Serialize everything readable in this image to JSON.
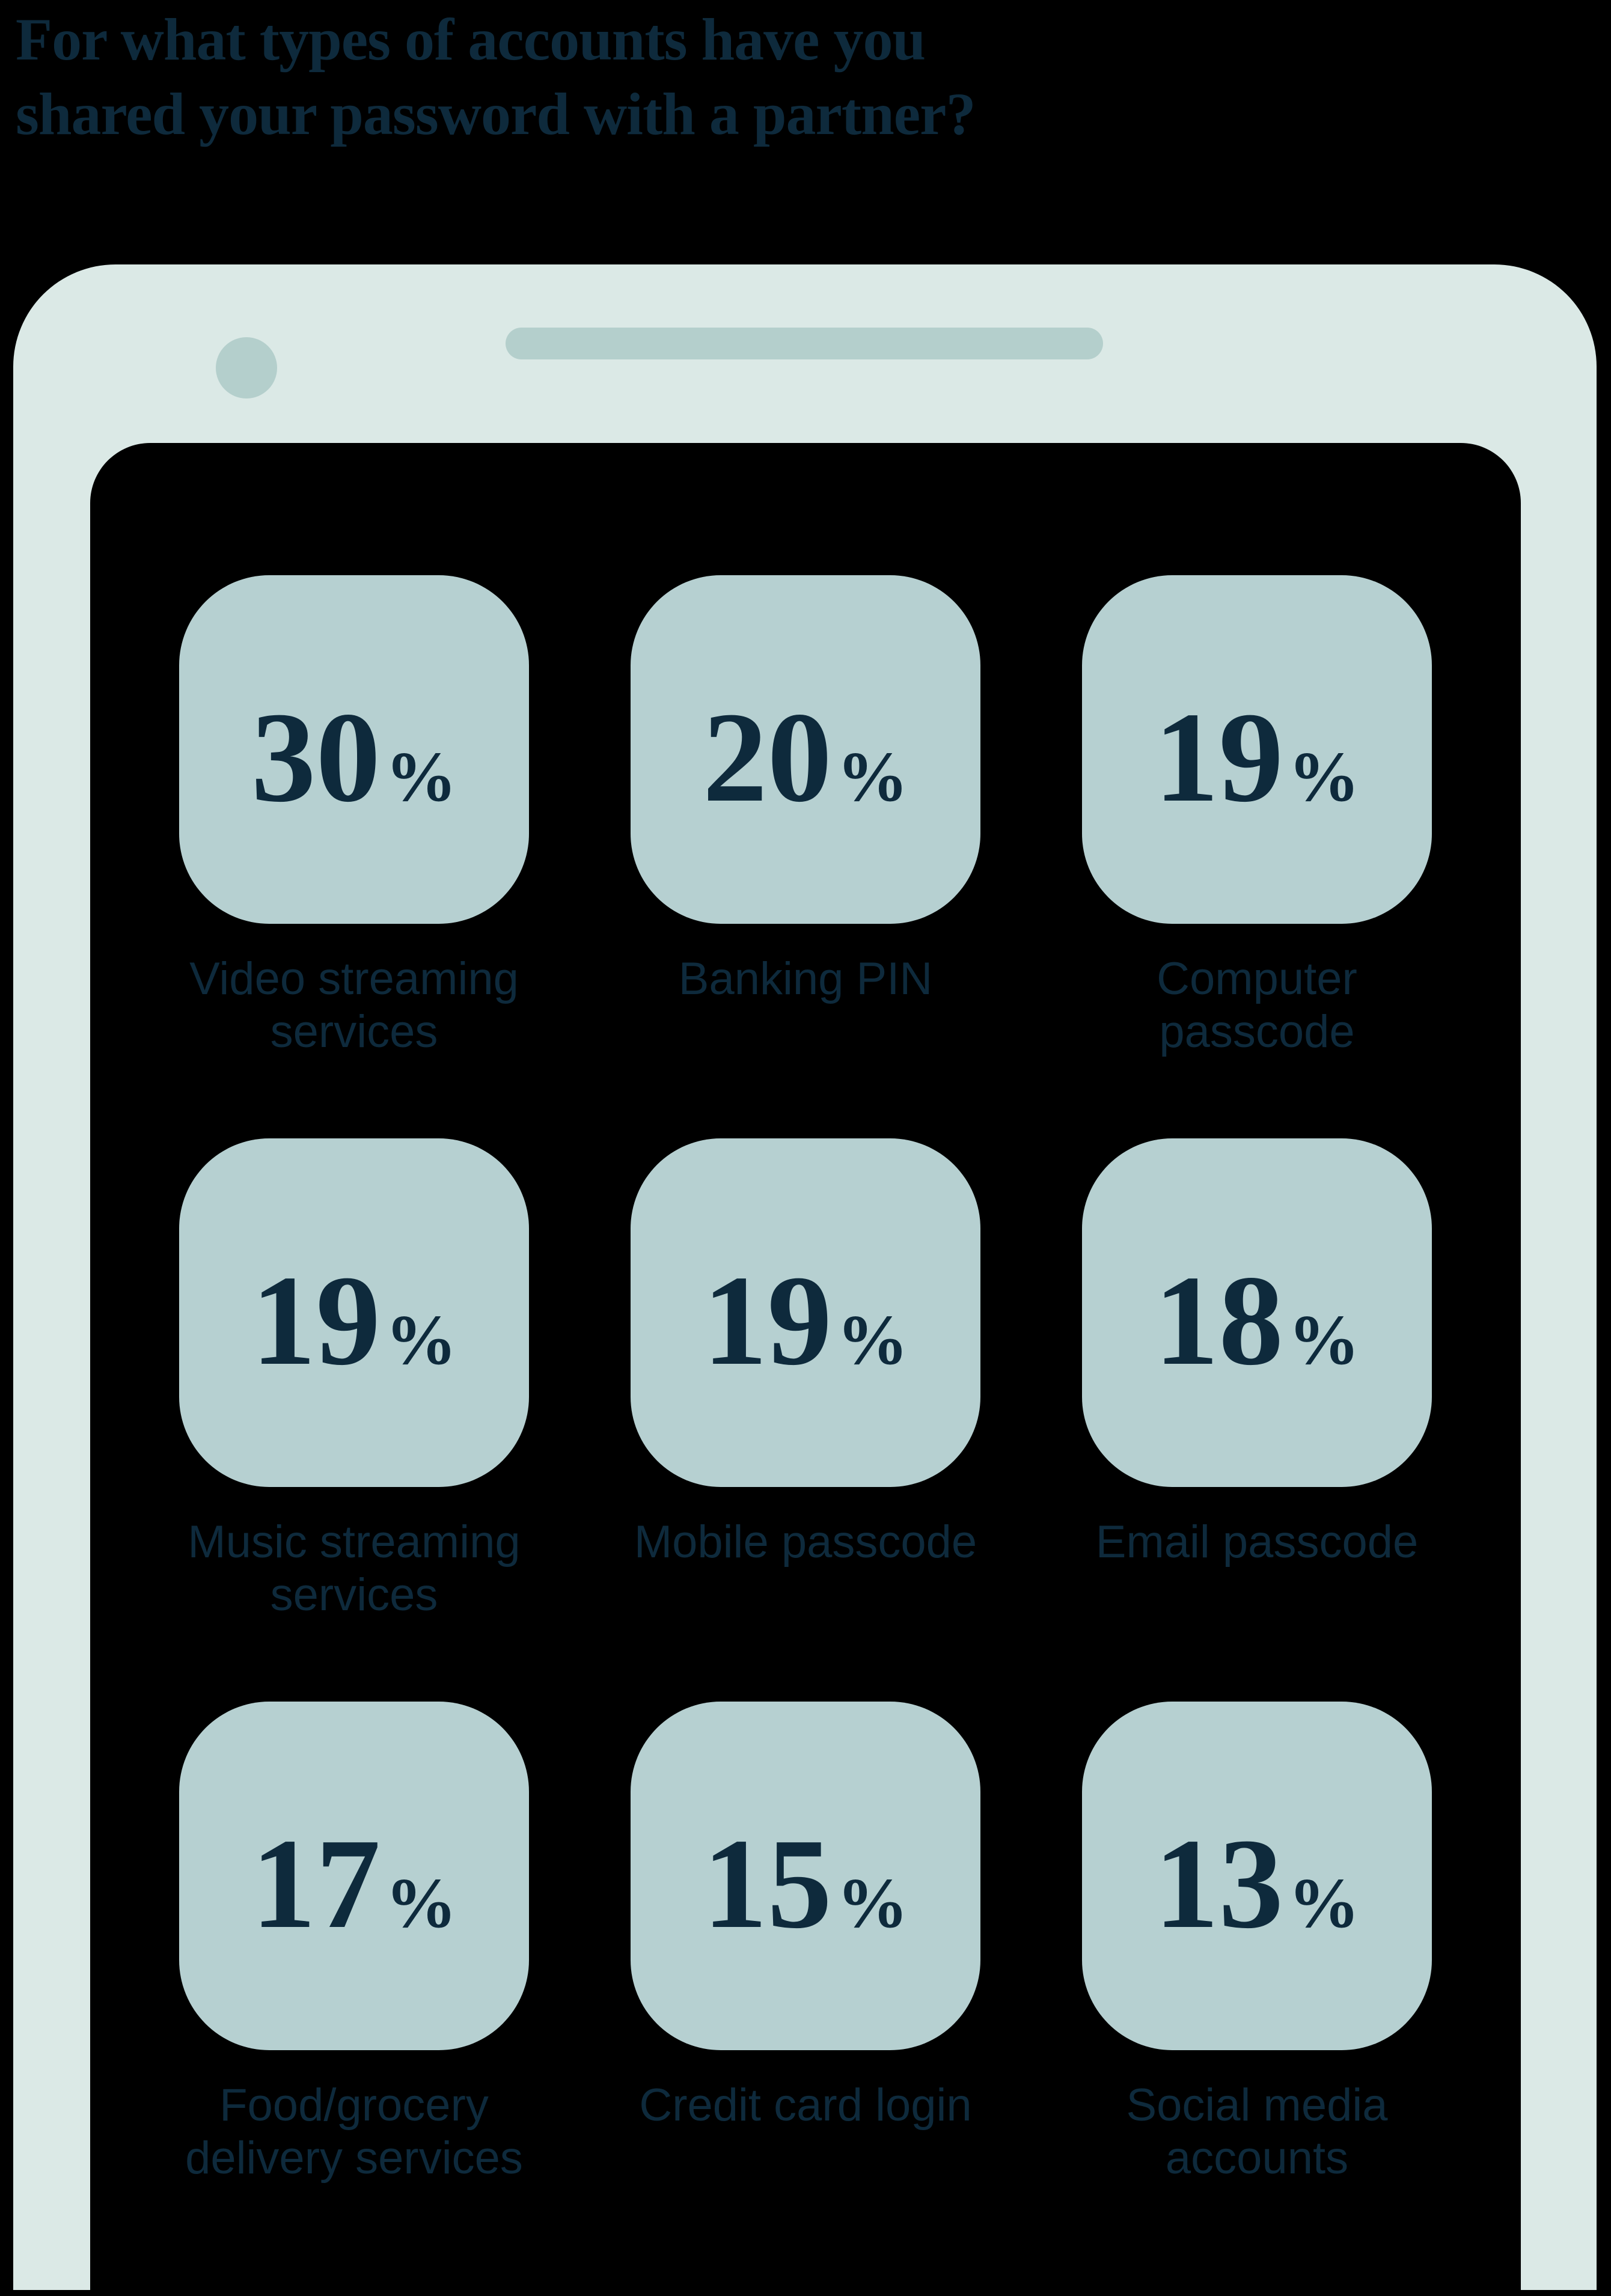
{
  "title": {
    "full": "For what types of accounts have you shared your password with a partner?",
    "line1": "For what types of accounts have you",
    "line2": "shared your password with a partner?"
  },
  "colors": {
    "background": "#000000",
    "navy": "#0e2a3c",
    "bezel": "#dbe9e6",
    "tile": "#b6d0d1",
    "hardware": "#b4cfcc"
  },
  "stats": {
    "percent_symbol": "%",
    "items": [
      {
        "value": "30",
        "label": "Video streaming services",
        "lines": [
          "Video streaming",
          "services"
        ]
      },
      {
        "value": "20",
        "label": "Banking PIN",
        "lines": [
          "Banking PIN"
        ]
      },
      {
        "value": "19",
        "label": "Computer passcode",
        "lines": [
          "Computer",
          "passcode"
        ]
      },
      {
        "value": "19",
        "label": "Music streaming services",
        "lines": [
          "Music streaming",
          "services"
        ]
      },
      {
        "value": "19",
        "label": "Mobile passcode",
        "lines": [
          "Mobile passcode"
        ]
      },
      {
        "value": "18",
        "label": "Email passcode",
        "lines": [
          "Email passcode"
        ]
      },
      {
        "value": "17",
        "label": "Food/grocery delivery services",
        "lines": [
          "Food/grocery",
          "delivery services"
        ]
      },
      {
        "value": "15",
        "label": "Credit card login",
        "lines": [
          "Credit card login"
        ]
      },
      {
        "value": "13",
        "label": "Social media accounts",
        "lines": [
          "Social media",
          "accounts"
        ]
      }
    ]
  },
  "chart_data": {
    "type": "table",
    "title": "For what types of accounts have you shared your password with a partner?",
    "categories": [
      "Video streaming services",
      "Banking PIN",
      "Computer passcode",
      "Music streaming services",
      "Mobile passcode",
      "Email passcode",
      "Food/grocery delivery services",
      "Credit card login",
      "Social media accounts"
    ],
    "values": [
      30,
      20,
      19,
      19,
      19,
      18,
      17,
      15,
      13
    ],
    "unit": "%",
    "layout": "3x3 grid of rounded stat tiles rendered on an illustrated phone screen"
  }
}
